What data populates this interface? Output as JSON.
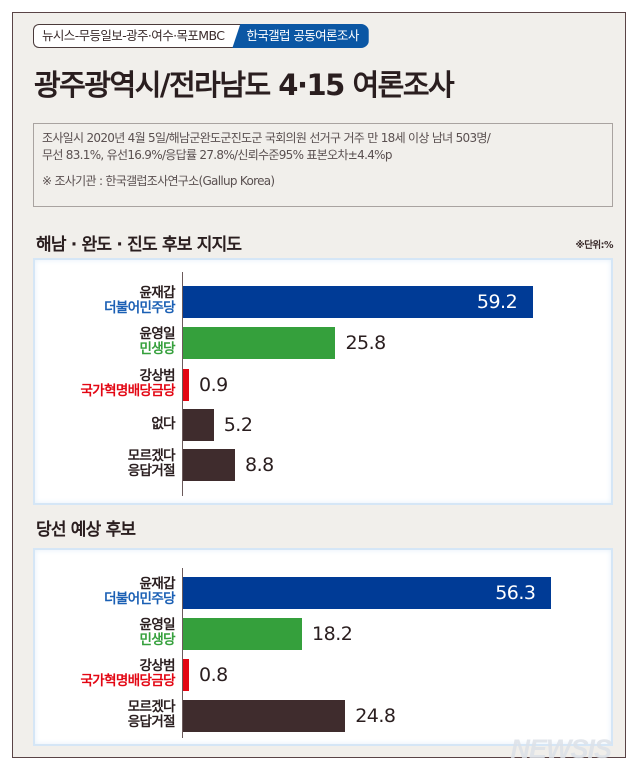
{
  "header": {
    "tag_left": "뉴시스-무등일보-광주·여수·목포MBC",
    "tag_right": "한국갤럽 공동여론조사",
    "title": "광주광역시/전라남도 4·15 여론조사"
  },
  "info": {
    "line1": "조사일시 2020년 4월 5일/해남군완도군진도군 국회의원 선거구 거주 만 18세 이상 남녀 503명/",
    "line2": "무선 83.1%, 유선16.9%/응답률 27.8%/신뢰수준95% 표본오차±4.4%p",
    "line3": "※ 조사기관 : 한국갤럽조사연구소(Gallup Korea)"
  },
  "colors": {
    "blue": "#003b96",
    "green": "#35a03c",
    "red": "#e30613",
    "dark": "#3f2c2d",
    "tag_blue": "#0b57a4"
  },
  "chart_data": [
    {
      "type": "bar",
      "orientation": "horizontal",
      "title": "해남 · 완도 · 진도 후보 지지도",
      "unit_note": "※단위:%",
      "categories": [
        "윤재갑 더불어민주당",
        "윤영일 민생당",
        "강상범 국가혁명배당금당",
        "없다",
        "모르겠다 응답거절"
      ],
      "values": [
        59.2,
        25.8,
        0.9,
        5.2,
        8.8
      ],
      "xlabel": "",
      "ylabel": "",
      "grid": false,
      "rows": [
        {
          "name": "윤재갑",
          "party": "더불어민주당",
          "party_color": "#1a5fb4",
          "value": 59.2,
          "value_label": "59.2",
          "color": "#003b96",
          "inside": true
        },
        {
          "name": "윤영일",
          "party": "민생당",
          "party_color": "#35a03c",
          "value": 25.8,
          "value_label": "25.8",
          "color": "#35a03c",
          "inside": false
        },
        {
          "name": "강상범",
          "party": "국가혁명배당금당",
          "party_color": "#e30613",
          "value": 0.9,
          "value_label": "0.9",
          "color": "#e30613",
          "inside": false
        },
        {
          "name": "없다",
          "party": "",
          "party_color": "#2a1e1f",
          "value": 5.2,
          "value_label": "5.2",
          "color": "#3f2c2d",
          "inside": false
        },
        {
          "name": "모르겠다",
          "party": "응답거절",
          "party_color": "#2a1e1f",
          "value": 8.8,
          "value_label": "8.8",
          "color": "#3f2c2d",
          "inside": false
        }
      ]
    },
    {
      "type": "bar",
      "orientation": "horizontal",
      "title": "당선 예상 후보",
      "categories": [
        "윤재갑 더불어민주당",
        "윤영일 민생당",
        "강상범 국가혁명배당금당",
        "모르겠다 응답거절"
      ],
      "values": [
        56.3,
        18.2,
        0.8,
        24.8
      ],
      "xlabel": "",
      "ylabel": "",
      "grid": false,
      "rows": [
        {
          "name": "윤재갑",
          "party": "더불어민주당",
          "party_color": "#1a5fb4",
          "value": 56.3,
          "value_label": "56.3",
          "color": "#003b96",
          "inside": true
        },
        {
          "name": "윤영일",
          "party": "민생당",
          "party_color": "#35a03c",
          "value": 18.2,
          "value_label": "18.2",
          "color": "#35a03c",
          "inside": false
        },
        {
          "name": "강상범",
          "party": "국가혁명배당금당",
          "party_color": "#e30613",
          "value": 0.8,
          "value_label": "0.8",
          "color": "#e30613",
          "inside": false
        },
        {
          "name": "모르겠다",
          "party": "응답거절",
          "party_color": "#2a1e1f",
          "value": 24.8,
          "value_label": "24.8",
          "color": "#3f2c2d",
          "inside": false
        }
      ]
    }
  ],
  "watermark": "NEWSIS"
}
